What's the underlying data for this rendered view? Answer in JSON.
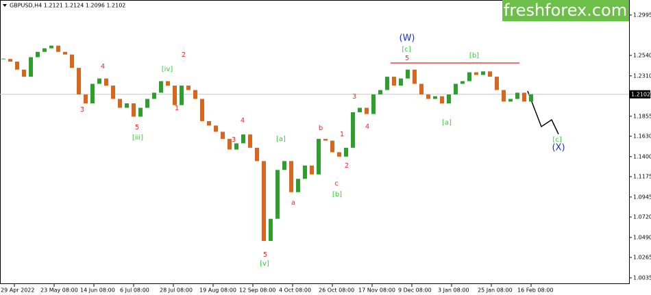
{
  "chart_data": {
    "type": "candlestick",
    "header": "GBPUSD,H4  1.2121 1.2124 1.2096 1.2102",
    "logo": "freshforex.com",
    "close": [
      1.25,
      1.247,
      1.238,
      1.23,
      1.252,
      1.258,
      1.262,
      1.265,
      1.258,
      1.255,
      1.24,
      1.21,
      1.2,
      1.222,
      1.228,
      1.22,
      1.205,
      1.195,
      1.2,
      1.185,
      1.195,
      1.205,
      1.212,
      1.225,
      1.22,
      1.198,
      1.22,
      1.215,
      1.205,
      1.18,
      1.175,
      1.168,
      1.16,
      1.148,
      1.155,
      1.165,
      1.15,
      1.135,
      1.045,
      1.07,
      1.125,
      1.135,
      1.1,
      1.115,
      1.13,
      1.12,
      1.16,
      1.158,
      1.145,
      1.14,
      1.15,
      1.19,
      1.195,
      1.188,
      1.21,
      1.215,
      1.23,
      1.22,
      1.228,
      1.238,
      1.222,
      1.21,
      1.205,
      1.208,
      1.2,
      1.21,
      1.222,
      1.225,
      1.235,
      1.232,
      1.236,
      1.23,
      1.215,
      1.202,
      1.205,
      1.212,
      1.202,
      1.2102
    ],
    "up_color": "#2e9e2e",
    "down_color": "#d9661f",
    "xlabels": [
      "29 Apr 2022",
      "23 May 08:00",
      "14 Jun 08:00",
      "6 Jul 08:00",
      "28 Jul 08:00",
      "19 Aug 08:00",
      "12 Sep 08:00",
      "4 Oct 08:00",
      "26 Oct 08:00",
      "17 Nov 08:00",
      "9 Dec 08:00",
      "3 Jan 08:00",
      "25 Jan 08:00",
      "16 Feb 08:00"
    ],
    "ylim": [
      0.9965,
      1.3164
    ],
    "yticks": [
      1.2995,
      {
        "value": 1.254,
        "label": "1.2540"
      },
      {
        "value": 1.231,
        "label": "1.2310"
      },
      1.2085,
      1.1855,
      {
        "value": 1.163,
        "label": "1.1630"
      },
      {
        "value": 1.14,
        "label": "1.1400"
      },
      1.1175,
      1.0945,
      {
        "value": 1.072,
        "label": "1.0720"
      },
      {
        "value": 1.049,
        "label": "1.0490"
      },
      1.0265,
      1.0035
    ],
    "last_price": 1.2102,
    "resistance": 1.2455,
    "resistance_color": "#e02020",
    "annotations": [
      {
        "text": "3",
        "color": "#e03030"
      },
      {
        "text": "4",
        "color": "#e03030"
      },
      {
        "text": "5",
        "color": "#e03030"
      },
      {
        "text": "2",
        "color": "#e03030"
      },
      {
        "text": "1",
        "color": "#e03030"
      },
      {
        "text": "4",
        "color": "#e03030"
      },
      {
        "text": "3",
        "color": "#e03030"
      },
      {
        "text": "5",
        "color": "#e03030"
      },
      {
        "text": "a",
        "color": "#e03030"
      },
      {
        "text": "b",
        "color": "#e03030"
      },
      {
        "text": "c",
        "color": "#e03030"
      },
      {
        "text": "1",
        "color": "#e03030"
      },
      {
        "text": "2",
        "color": "#e03030"
      },
      {
        "text": "3",
        "color": "#e03030"
      },
      {
        "text": "4",
        "color": "#e03030"
      },
      {
        "text": "5",
        "color": "#e03030"
      },
      {
        "text": "[iii]",
        "color": "#33cc33"
      },
      {
        "text": "[iv]",
        "color": "#33cc33"
      },
      {
        "text": "[v]",
        "color": "#33cc33"
      },
      {
        "text": "[a]",
        "color": "#33cc33"
      },
      {
        "text": "[b]",
        "color": "#33cc33"
      },
      {
        "text": "[c]",
        "color": "#33cc33"
      },
      {
        "text": "[a]",
        "color": "#33cc33"
      },
      {
        "text": "[b]",
        "color": "#33cc33"
      },
      {
        "text": "[c]",
        "color": "#33cc33"
      },
      {
        "text": "(W)",
        "color": "#1a2fd0"
      },
      {
        "text": "(X)",
        "color": "#1a2fd0"
      }
    ]
  }
}
